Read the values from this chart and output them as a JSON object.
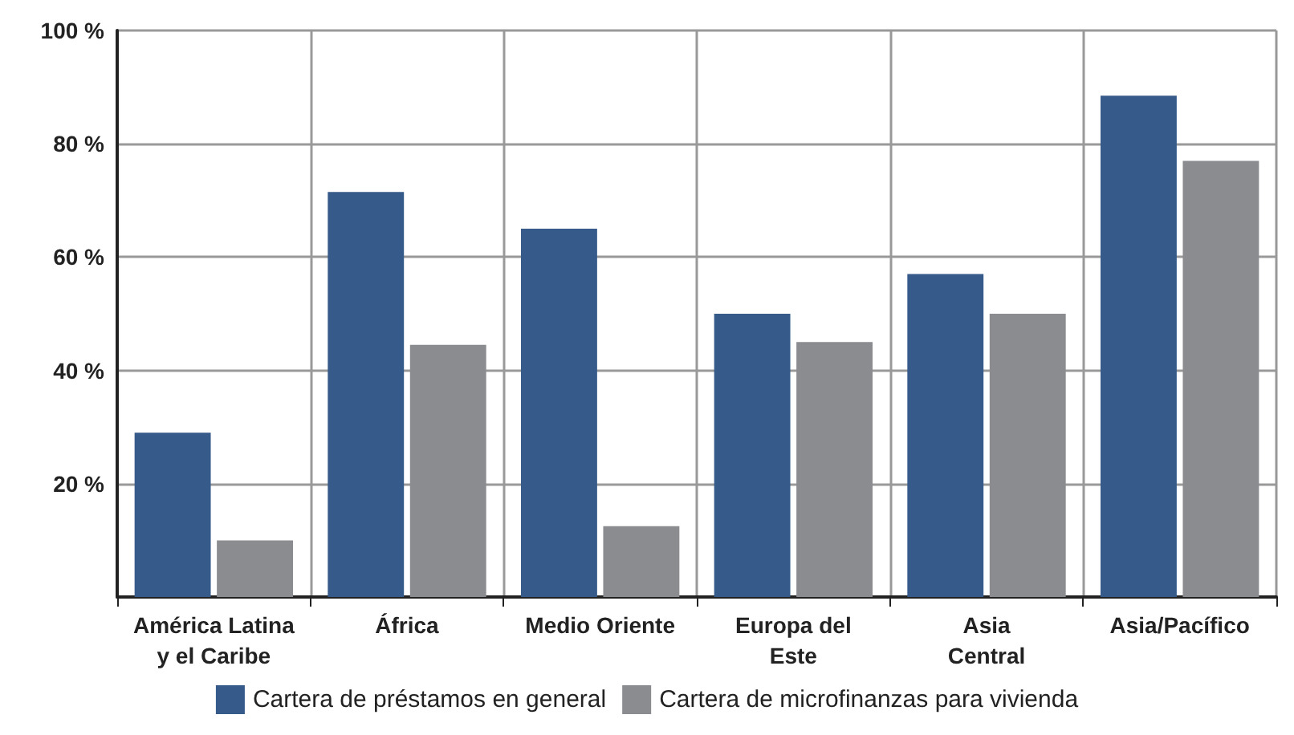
{
  "chart_data": {
    "type": "bar",
    "categories": [
      "América Latina\ny el Caribe",
      "África",
      "Medio Oriente",
      "Europa del\nEste",
      "Asia\nCentral",
      "Asia/Pacífico"
    ],
    "series": [
      {
        "name": "Cartera de préstamos en general",
        "color": "#365a89",
        "values": [
          29,
          71.5,
          65,
          50,
          57,
          88.5
        ]
      },
      {
        "name": "Cartera de microfinanzas para vivienda",
        "color": "#8b8c90",
        "values": [
          10,
          44.5,
          12.5,
          45,
          50,
          77
        ]
      }
    ],
    "ylim": [
      0,
      100
    ],
    "yticks": [
      {
        "value": 20,
        "label": "20 %"
      },
      {
        "value": 40,
        "label": "40 %"
      },
      {
        "value": 60,
        "label": "60 %"
      },
      {
        "value": 80,
        "label": "80 %"
      },
      {
        "value": 100,
        "label": "100 %"
      }
    ],
    "grid": true,
    "legend": "bottom"
  }
}
